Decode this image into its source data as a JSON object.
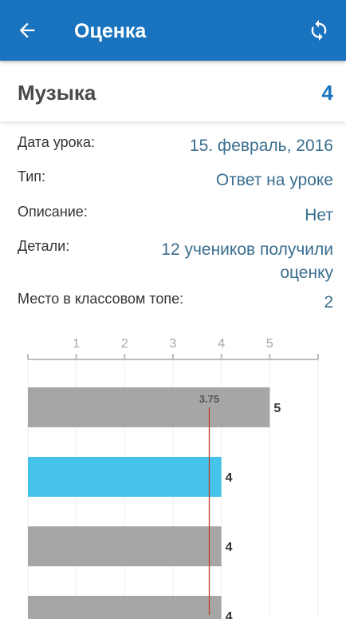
{
  "header": {
    "title": "Оценка",
    "back_icon": "arrow-left-icon",
    "refresh_icon": "refresh-icon",
    "color": "#1a73bf"
  },
  "subject": {
    "name": "Музыка",
    "grade": "4"
  },
  "details": {
    "lesson_date": {
      "label": "Дата урока:",
      "value": "15. февраль, 2016"
    },
    "type": {
      "label": "Тип:",
      "value": "Ответ на уроке"
    },
    "description": {
      "label": "Описание:",
      "value": "Нет"
    },
    "info": {
      "label": "Детали:",
      "value_line1": "12 учеников получили",
      "value_line2": "оценку"
    },
    "class_rank": {
      "label": "Место в классовом топе:",
      "value": "2"
    }
  },
  "chart_data": {
    "type": "bar",
    "orientation": "horizontal",
    "xticks": [
      "1",
      "2",
      "3",
      "4",
      "5"
    ],
    "xlim": [
      0,
      6
    ],
    "average_line": {
      "value": 3.75,
      "label": "3.75",
      "color": "#c0392b"
    },
    "bars": [
      {
        "value": 5,
        "label": "5",
        "highlighted": false
      },
      {
        "value": 4,
        "label": "4",
        "highlighted": true
      },
      {
        "value": 4,
        "label": "4",
        "highlighted": false
      },
      {
        "value": 4,
        "label": "4",
        "highlighted": false
      }
    ],
    "colors": {
      "bar": "#a6a6a6",
      "highlight": "#46c3ea"
    }
  }
}
